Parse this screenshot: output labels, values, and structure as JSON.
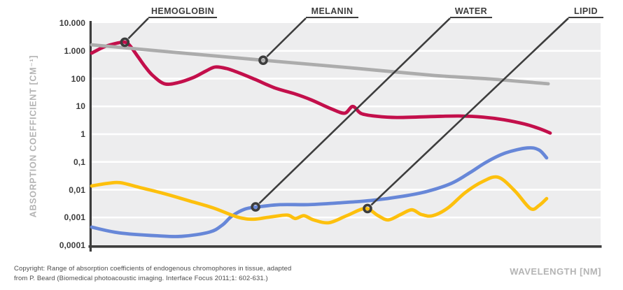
{
  "chart_data": {
    "type": "line",
    "title": "",
    "xlabel": "WAVELENGTH [NM]",
    "ylabel": "ABSORPTION COEFFICIENT [CM⁻¹]",
    "y_scale": "log",
    "y_max": 10000,
    "y_min": 0.0001,
    "y_tick_labels": [
      "10.000",
      "1.000",
      "100",
      "10",
      "1",
      "0,1",
      "0,01",
      "0,001",
      "0,0001"
    ],
    "x_tick_labels": [],
    "grid": "horizontal white gridlines on light gray plot background",
    "legend_position": "labels-above-with-leader-lines",
    "series": [
      {
        "id": "hemoglobin",
        "name": "HEMOGLOBIN",
        "color": "#c30f4b",
        "marker": [
          0.065,
          2050
        ],
        "points": [
          [
            0,
            830
          ],
          [
            0.025,
            1400
          ],
          [
            0.05,
            1900
          ],
          [
            0.065,
            2050
          ],
          [
            0.075,
            1550
          ],
          [
            0.09,
            650
          ],
          [
            0.105,
            270
          ],
          [
            0.12,
            130
          ],
          [
            0.143,
            65
          ],
          [
            0.17,
            72
          ],
          [
            0.2,
            110
          ],
          [
            0.225,
            190
          ],
          [
            0.243,
            262
          ],
          [
            0.265,
            230
          ],
          [
            0.29,
            160
          ],
          [
            0.322,
            92
          ],
          [
            0.36,
            46
          ],
          [
            0.4,
            28
          ],
          [
            0.432,
            17
          ],
          [
            0.47,
            8.3
          ],
          [
            0.497,
            5.7
          ],
          [
            0.513,
            10
          ],
          [
            0.53,
            5.5
          ],
          [
            0.56,
            4.4
          ],
          [
            0.6,
            4.0
          ],
          [
            0.666,
            4.3
          ],
          [
            0.721,
            4.5
          ],
          [
            0.769,
            4.1
          ],
          [
            0.81,
            3.3
          ],
          [
            0.851,
            2.3
          ],
          [
            0.879,
            1.6
          ],
          [
            0.901,
            1.1
          ]
        ]
      },
      {
        "id": "melanin",
        "name": "MELANIN",
        "color": "#acacac",
        "marker": [
          0.337,
          460
        ],
        "points": [
          [
            0,
            1650
          ],
          [
            0.164,
            880
          ],
          [
            0.337,
            460
          ],
          [
            0.508,
            245
          ],
          [
            0.673,
            130
          ],
          [
            0.783,
            97
          ],
          [
            0.897,
            65
          ]
        ]
      },
      {
        "id": "water",
        "name": "WATER",
        "color": "#6787d8",
        "marker": [
          0.322,
          0.0024
        ],
        "points": [
          [
            0,
            0.00045
          ],
          [
            0.054,
            0.00028
          ],
          [
            0.129,
            0.00022
          ],
          [
            0.177,
            0.00021
          ],
          [
            0.232,
            0.0003
          ],
          [
            0.257,
            0.00054
          ],
          [
            0.275,
            0.0011
          ],
          [
            0.301,
            0.002
          ],
          [
            0.326,
            0.0024
          ],
          [
            0.37,
            0.0029
          ],
          [
            0.425,
            0.0029
          ],
          [
            0.48,
            0.0033
          ],
          [
            0.549,
            0.0041
          ],
          [
            0.611,
            0.0058
          ],
          [
            0.659,
            0.0087
          ],
          [
            0.707,
            0.017
          ],
          [
            0.744,
            0.042
          ],
          [
            0.776,
            0.1
          ],
          [
            0.813,
            0.21
          ],
          [
            0.856,
            0.32
          ],
          [
            0.879,
            0.27
          ],
          [
            0.894,
            0.14
          ]
        ]
      },
      {
        "id": "lipid",
        "name": "LIPID",
        "color": "#fdc00d",
        "marker": [
          0.542,
          0.0021
        ],
        "points": [
          [
            0,
            0.0137
          ],
          [
            0.033,
            0.017
          ],
          [
            0.056,
            0.018
          ],
          [
            0.095,
            0.012
          ],
          [
            0.143,
            0.0072
          ],
          [
            0.191,
            0.004
          ],
          [
            0.239,
            0.0022
          ],
          [
            0.287,
            0.00103
          ],
          [
            0.318,
            0.00087
          ],
          [
            0.349,
            0.00103
          ],
          [
            0.384,
            0.00122
          ],
          [
            0.4,
            0.00092
          ],
          [
            0.417,
            0.00116
          ],
          [
            0.436,
            0.00082
          ],
          [
            0.466,
            0.00065
          ],
          [
            0.501,
            0.00116
          ],
          [
            0.538,
            0.0021
          ],
          [
            0.563,
            0.00116
          ],
          [
            0.583,
            0.00082
          ],
          [
            0.607,
            0.00128
          ],
          [
            0.629,
            0.0019
          ],
          [
            0.648,
            0.00128
          ],
          [
            0.67,
            0.00116
          ],
          [
            0.7,
            0.0022
          ],
          [
            0.734,
            0.0079
          ],
          [
            0.769,
            0.02
          ],
          [
            0.799,
            0.028
          ],
          [
            0.831,
            0.0093
          ],
          [
            0.862,
            0.0021
          ],
          [
            0.879,
            0.0027
          ],
          [
            0.894,
            0.0048
          ]
        ]
      }
    ]
  },
  "footer": {
    "copyright_line1": "Copyright: Range of absorption coefficients of endogenous chromophores in tissue, adapted",
    "copyright_line2": "from P. Beard (Biomedical photoacoustic imaging. Interface Focus 2011;1: 602-631.)"
  },
  "colors": {
    "plot_background": "#ededee",
    "gridline": "#ffffff",
    "axis_dark": "#3d3d3d",
    "axis_title_gray": "#b4b4b4",
    "hemoglobin": "#c30f4b",
    "melanin": "#acacac",
    "water": "#6787d8",
    "lipid": "#fdc00d"
  }
}
